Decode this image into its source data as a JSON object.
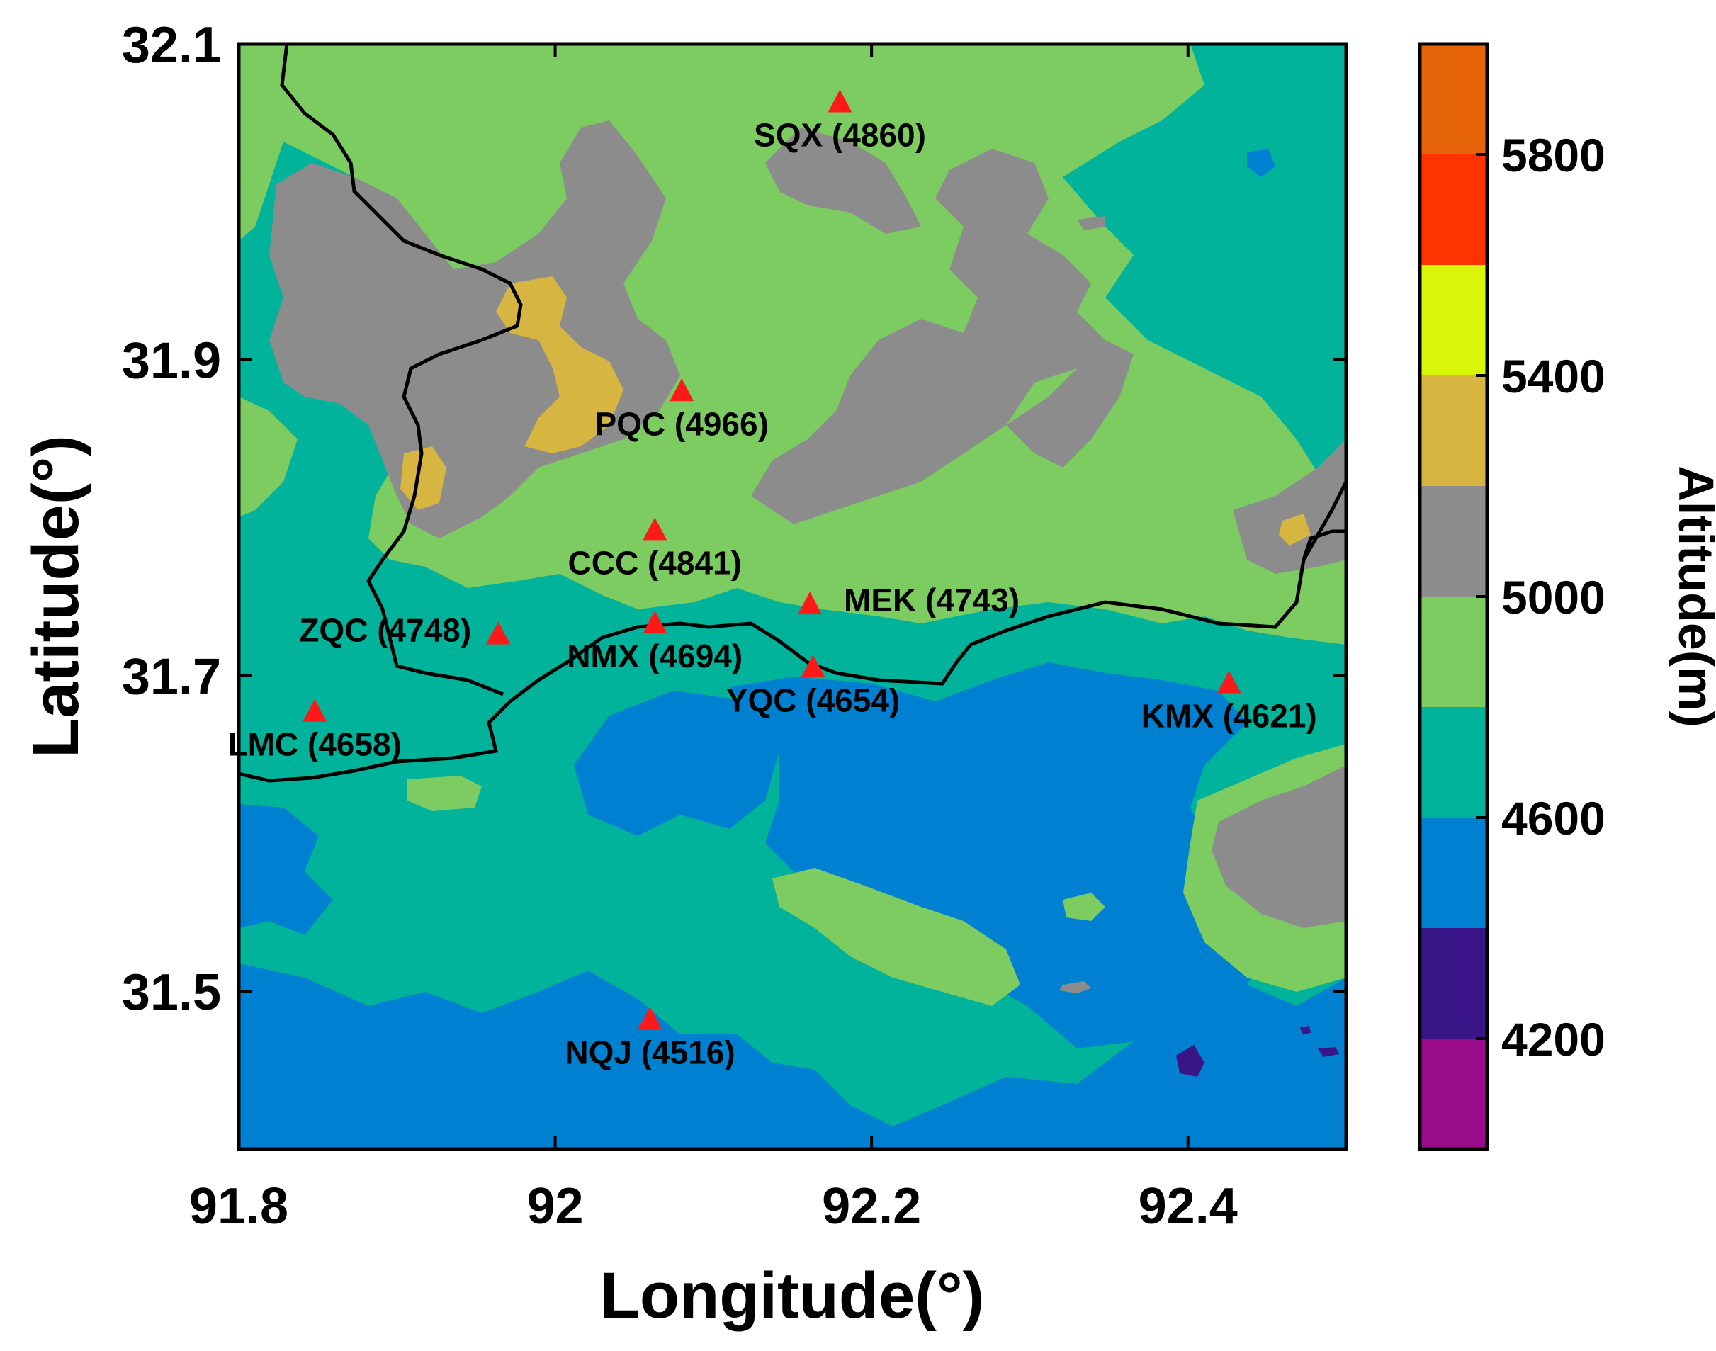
{
  "map": {
    "xlabel": "Longitude(°)",
    "ylabel": "Latitude(°)",
    "xlim": [
      91.8,
      92.5
    ],
    "ylim": [
      31.4,
      32.1
    ],
    "xticks": [
      "91.8",
      "92",
      "92.2",
      "92.4"
    ],
    "yticks": [
      "31.5",
      "31.7",
      "31.9",
      "32.1"
    ],
    "background_color": "#00b39a",
    "river_color": "#000000",
    "marker_color": "#ff1a1a",
    "stations": [
      {
        "code": "SQX",
        "elev": 4860,
        "label": "SQX (4860)",
        "lon": 92.18,
        "lat": 32.063
      },
      {
        "code": "PQC",
        "elev": 4966,
        "label": "PQC (4966)",
        "lon": 92.08,
        "lat": 31.88
      },
      {
        "code": "CCC",
        "elev": 4841,
        "label": "CCC (4841)",
        "lon": 92.063,
        "lat": 31.792
      },
      {
        "code": "MEK",
        "elev": 4743,
        "label": "MEK (4743)",
        "lon": 92.161,
        "lat": 31.745
      },
      {
        "code": "ZQC",
        "elev": 4748,
        "label": "ZQC (4748)",
        "lon": 91.964,
        "lat": 31.726
      },
      {
        "code": "NMX",
        "elev": 4694,
        "label": "NMX (4694)",
        "lon": 92.063,
        "lat": 31.733
      },
      {
        "code": "YQC",
        "elev": 4654,
        "label": "YQC (4654)",
        "lon": 92.163,
        "lat": 31.705
      },
      {
        "code": "LMC",
        "elev": 4658,
        "label": "LMC (4658)",
        "lon": 91.848,
        "lat": 31.677
      },
      {
        "code": "KMX",
        "elev": 4621,
        "label": "KMX (4621)",
        "lon": 92.426,
        "lat": 31.695
      },
      {
        "code": "NQJ",
        "elev": 4516,
        "label": "NQJ (4516)",
        "lon": 92.06,
        "lat": 31.482
      }
    ]
  },
  "colorbar": {
    "label": "Altitude(m)",
    "tick_labels": [
      "4200",
      "4600",
      "5000",
      "5400",
      "5800"
    ],
    "tick_values": [
      4200,
      4600,
      5000,
      5400,
      5800
    ],
    "range": [
      4000,
      6000
    ],
    "levels": [
      {
        "from": 4000,
        "to": 4200,
        "color": "#990b88"
      },
      {
        "from": 4200,
        "to": 4400,
        "color": "#391588"
      },
      {
        "from": 4400,
        "to": 4600,
        "color": "#0080d0"
      },
      {
        "from": 4600,
        "to": 4800,
        "color": "#00b39a"
      },
      {
        "from": 4800,
        "to": 5000,
        "color": "#7dcc62"
      },
      {
        "from": 5000,
        "to": 5200,
        "color": "#8c8c8c"
      },
      {
        "from": 5200,
        "to": 5400,
        "color": "#d6b540"
      },
      {
        "from": 5400,
        "to": 5600,
        "color": "#d9f50a"
      },
      {
        "from": 5600,
        "to": 5800,
        "color": "#ff3300"
      },
      {
        "from": 5800,
        "to": 6000,
        "color": "#e6640a"
      }
    ]
  }
}
